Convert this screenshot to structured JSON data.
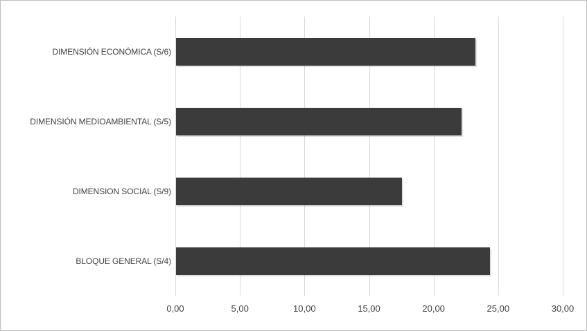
{
  "chart_data": {
    "type": "bar",
    "orientation": "horizontal",
    "title": "",
    "xlabel": "",
    "ylabel": "",
    "categories": [
      "DIMENSIÓN ECONÓMICA (S/6)",
      "DIMENSIÓN MEDIOAMBIENTAL (S/5)",
      "DIMENSION SOCIAL (S/9)",
      "BLOQUE GENERAL (S/4)"
    ],
    "values": [
      23.2,
      22.1,
      17.5,
      24.3
    ],
    "xlim": [
      0,
      30
    ],
    "xticks": [
      0,
      5,
      10,
      15,
      20,
      25,
      30
    ],
    "xtick_labels": [
      "0,00",
      "5,00",
      "10,00",
      "15,00",
      "20,00",
      "25,00",
      "30,00"
    ],
    "grid": "vertical-only",
    "legend": false,
    "colors": {
      "bar": "#3b3b3b",
      "gridline": "#d9d9d9",
      "text": "#3f3f3f",
      "figure_border": "#bfbfbf",
      "background": "#ffffff"
    }
  }
}
